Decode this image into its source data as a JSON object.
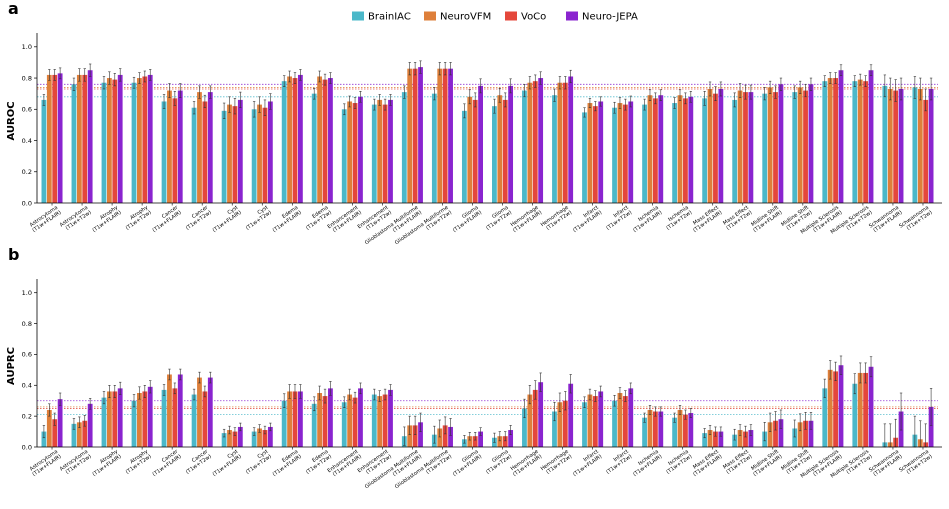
{
  "legend": [
    {
      "name": "BrainIAC",
      "color": "#4bb8c9"
    },
    {
      "name": "NeuroVFM",
      "color": "#de7f3a"
    },
    {
      "name": "VoCo",
      "color": "#e4473b"
    },
    {
      "name": "Neuro-JEPA",
      "color": "#8a24cf"
    }
  ],
  "chart_data": [
    {
      "panel": "a",
      "type": "bar",
      "ylabel": "AUROC",
      "ylim": [
        0,
        1.05
      ],
      "yticks": [
        "0.0",
        "0.2",
        "0.4",
        "0.6",
        "0.8",
        "1.0"
      ],
      "categories": [
        [
          "Astrocytoma",
          "(T1w+FLAIR)"
        ],
        [
          "Astrocytoma",
          "(T1w+T2w)"
        ],
        [
          "Atrophy",
          "(T1w+FLAIR)"
        ],
        [
          "Atrophy",
          "(T1w+T2w)"
        ],
        [
          "Cancer",
          "(T1w+FLAIR)"
        ],
        [
          "Cancer",
          "(T1w+T2w)"
        ],
        [
          "Cyst",
          "(T1w+FLAIR)"
        ],
        [
          "Cyst",
          "(T1w+T2w)"
        ],
        [
          "Edema",
          "(T1w+FLAIR)"
        ],
        [
          "Edema",
          "(T1w+T2w)"
        ],
        [
          "Enhancement",
          "(T1w+FLAIR)"
        ],
        [
          "Enhancement",
          "(T1w+T2w)"
        ],
        [
          "Glioblastoma Multiforme",
          "(T1w+FLAIR)"
        ],
        [
          "Glioblastoma Multiforme",
          "(T1w+T2w)"
        ],
        [
          "Glioma",
          "(T1w+FLAIR)"
        ],
        [
          "Glioma",
          "(T1w+T2w)"
        ],
        [
          "Hemorrhage",
          "(T1w+FLAIR)"
        ],
        [
          "Hemorrhage",
          "(T1w+T2w)"
        ],
        [
          "Infarct",
          "(T1w+FLAIR)"
        ],
        [
          "Infarct",
          "(T1w+T2w)"
        ],
        [
          "Ischemia",
          "(T1w+FLAIR)"
        ],
        [
          "Ischemia",
          "(T1w+T2w)"
        ],
        [
          "Mass Effect",
          "(T1w+FLAIR)"
        ],
        [
          "Mass Effect",
          "(T1w+T2w)"
        ],
        [
          "Midline Shift",
          "(T1w+FLAIR)"
        ],
        [
          "Midline Shift",
          "(T1w+T2w)"
        ],
        [
          "Multiple Sclerosis",
          "(T1w+FLAIR)"
        ],
        [
          "Multiple Sclerosis",
          "(T1w+T2w)"
        ],
        [
          "Schwannoma",
          "(T1w+FLAIR)"
        ],
        [
          "Schwannoma",
          "(T1w+T2w)"
        ]
      ],
      "series": [
        {
          "name": "BrainIAC",
          "values": [
            0.66,
            0.76,
            0.77,
            0.77,
            0.65,
            0.61,
            0.59,
            0.6,
            0.78,
            0.7,
            0.6,
            0.63,
            0.71,
            0.7,
            0.59,
            0.62,
            0.72,
            0.69,
            0.58,
            0.61,
            0.63,
            0.64,
            0.67,
            0.66,
            0.7,
            0.71,
            0.78,
            0.78,
            0.75,
            0.74
          ]
        },
        {
          "name": "NeuroVFM",
          "values": [
            0.82,
            0.82,
            0.8,
            0.8,
            0.72,
            0.71,
            0.63,
            0.63,
            0.81,
            0.81,
            0.65,
            0.66,
            0.86,
            0.86,
            0.68,
            0.69,
            0.77,
            0.77,
            0.64,
            0.64,
            0.69,
            0.69,
            0.73,
            0.72,
            0.74,
            0.74,
            0.8,
            0.79,
            0.73,
            0.73
          ]
        },
        {
          "name": "VoCo",
          "values": [
            0.82,
            0.82,
            0.79,
            0.81,
            0.67,
            0.65,
            0.62,
            0.61,
            0.8,
            0.79,
            0.64,
            0.63,
            0.86,
            0.86,
            0.66,
            0.66,
            0.78,
            0.77,
            0.62,
            0.63,
            0.67,
            0.67,
            0.7,
            0.71,
            0.71,
            0.72,
            0.8,
            0.78,
            0.72,
            0.66
          ]
        },
        {
          "name": "Neuro-JEPA",
          "values": [
            0.83,
            0.85,
            0.82,
            0.82,
            0.72,
            0.71,
            0.66,
            0.65,
            0.82,
            0.8,
            0.68,
            0.66,
            0.87,
            0.86,
            0.75,
            0.75,
            0.8,
            0.81,
            0.65,
            0.65,
            0.69,
            0.68,
            0.73,
            0.71,
            0.76,
            0.76,
            0.85,
            0.85,
            0.73,
            0.73
          ]
        }
      ],
      "errors": [
        0.035,
        0.04,
        0.04,
        0.035,
        0.045,
        0.04,
        0.05,
        0.05,
        0.035,
        0.035,
        0.035,
        0.035,
        0.04,
        0.04,
        0.045,
        0.045,
        0.04,
        0.04,
        0.03,
        0.035,
        0.035,
        0.035,
        0.045,
        0.045,
        0.04,
        0.04,
        0.035,
        0.035,
        0.07,
        0.07
      ],
      "reference_lines": [
        {
          "series": "BrainIAC",
          "value": 0.68
        },
        {
          "series": "NeuroVFM",
          "value": 0.74
        },
        {
          "series": "VoCo",
          "value": 0.73
        },
        {
          "series": "Neuro-JEPA",
          "value": 0.76
        }
      ]
    },
    {
      "panel": "b",
      "type": "bar",
      "ylabel": "AUPRC",
      "ylim": [
        0,
        1.05
      ],
      "yticks": [
        "0.0",
        "0.2",
        "0.4",
        "0.6",
        "0.8",
        "1.0"
      ],
      "categories": [
        [
          "Astrocytoma",
          "(T1w+FLAIR)"
        ],
        [
          "Astrocytoma",
          "(T1w+T2w)"
        ],
        [
          "Atrophy",
          "(T1w+FLAIR)"
        ],
        [
          "Atrophy",
          "(T1w+T2w)"
        ],
        [
          "Cancer",
          "(T1w+FLAIR)"
        ],
        [
          "Cancer",
          "(T1w+T2w)"
        ],
        [
          "Cyst",
          "(T1w+FLAIR)"
        ],
        [
          "Cyst",
          "(T1w+T2w)"
        ],
        [
          "Edema",
          "(T1w+FLAIR)"
        ],
        [
          "Edema",
          "(T1w+T2w)"
        ],
        [
          "Enhancement",
          "(T1w+FLAIR)"
        ],
        [
          "Enhancement",
          "(T1w+T2w)"
        ],
        [
          "Glioblastoma Multiforme",
          "(T1w+FLAIR)"
        ],
        [
          "Glioblastoma Multiforme",
          "(T1w+T2w)"
        ],
        [
          "Glioma",
          "(T1w+FLAIR)"
        ],
        [
          "Glioma",
          "(T1w+T2w)"
        ],
        [
          "Hemorrhage",
          "(T1w+FLAIR)"
        ],
        [
          "Hemorrhage",
          "(T1w+T2w)"
        ],
        [
          "Infarct",
          "(T1w+FLAIR)"
        ],
        [
          "Infarct",
          "(T1w+T2w)"
        ],
        [
          "Ischemia",
          "(T1w+FLAIR)"
        ],
        [
          "Ischemia",
          "(T1w+T2w)"
        ],
        [
          "Mass Effect",
          "(T1w+FLAIR)"
        ],
        [
          "Mass Effect",
          "(T1w+T2w)"
        ],
        [
          "Midline Shift",
          "(T1w+FLAIR)"
        ],
        [
          "Midline Shift",
          "(T1w+T2w)"
        ],
        [
          "Multiple Sclerosis",
          "(T1w+FLAIR)"
        ],
        [
          "Multiple Sclerosis",
          "(T1w+T2w)"
        ],
        [
          "Schwannoma",
          "(T1w+FLAIR)"
        ],
        [
          "Schwannoma",
          "(T1w+T2w)"
        ]
      ],
      "series": [
        {
          "name": "BrainIAC",
          "values": [
            0.1,
            0.15,
            0.32,
            0.3,
            0.37,
            0.34,
            0.09,
            0.1,
            0.3,
            0.28,
            0.29,
            0.34,
            0.07,
            0.08,
            0.05,
            0.06,
            0.25,
            0.23,
            0.29,
            0.3,
            0.19,
            0.19,
            0.09,
            0.08,
            0.1,
            0.12,
            0.38,
            0.41,
            0.03,
            0.08
          ]
        },
        {
          "name": "NeuroVFM",
          "values": [
            0.24,
            0.16,
            0.36,
            0.35,
            0.47,
            0.45,
            0.11,
            0.12,
            0.36,
            0.35,
            0.34,
            0.33,
            0.14,
            0.12,
            0.07,
            0.07,
            0.34,
            0.29,
            0.34,
            0.35,
            0.24,
            0.24,
            0.11,
            0.11,
            0.16,
            0.16,
            0.5,
            0.48,
            0.03,
            0.05
          ]
        },
        {
          "name": "VoCo",
          "values": [
            0.18,
            0.17,
            0.36,
            0.36,
            0.38,
            0.36,
            0.1,
            0.11,
            0.36,
            0.33,
            0.32,
            0.34,
            0.14,
            0.14,
            0.07,
            0.07,
            0.37,
            0.3,
            0.33,
            0.33,
            0.23,
            0.21,
            0.1,
            0.1,
            0.17,
            0.17,
            0.49,
            0.48,
            0.06,
            0.03
          ]
        },
        {
          "name": "Neuro-JEPA",
          "values": [
            0.31,
            0.28,
            0.38,
            0.39,
            0.47,
            0.45,
            0.13,
            0.13,
            0.36,
            0.38,
            0.38,
            0.37,
            0.16,
            0.13,
            0.1,
            0.11,
            0.42,
            0.41,
            0.36,
            0.38,
            0.23,
            0.22,
            0.1,
            0.11,
            0.18,
            0.17,
            0.53,
            0.52,
            0.23,
            0.26
          ]
        }
      ],
      "errors": [
        0.04,
        0.035,
        0.04,
        0.04,
        0.035,
        0.035,
        0.025,
        0.025,
        0.045,
        0.045,
        0.035,
        0.035,
        0.06,
        0.055,
        0.025,
        0.03,
        0.06,
        0.06,
        0.035,
        0.035,
        0.03,
        0.03,
        0.03,
        0.035,
        0.06,
        0.055,
        0.06,
        0.065,
        0.12,
        0.12
      ],
      "reference_lines": [
        {
          "series": "BrainIAC",
          "value": 0.21
        },
        {
          "series": "NeuroVFM",
          "value": 0.26
        },
        {
          "series": "VoCo",
          "value": 0.25
        },
        {
          "series": "Neuro-JEPA",
          "value": 0.3
        }
      ]
    }
  ]
}
